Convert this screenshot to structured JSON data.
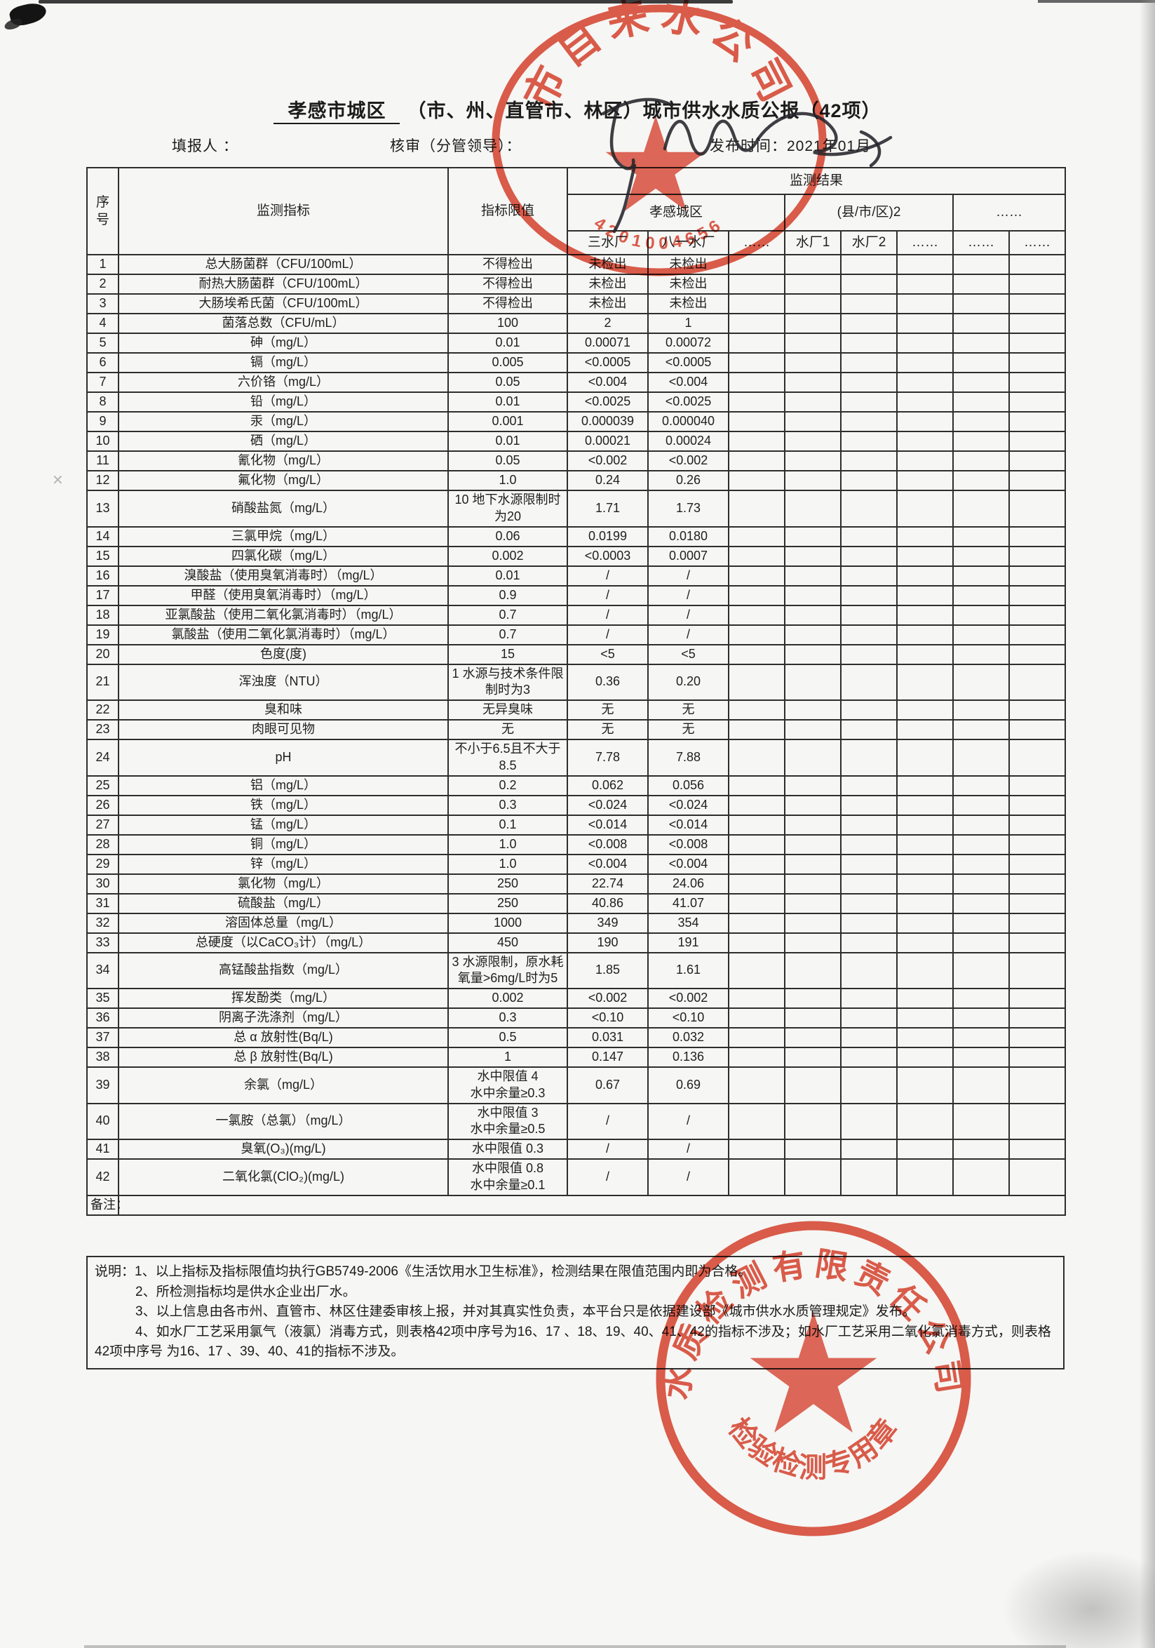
{
  "page": {
    "title_region": "孝感市城区",
    "title_rest": "（市、州、直管市、林区）城市供水水质公报（42项）",
    "filler_label": "填报人 ：",
    "reviewer_label": "核审（分管领导）：",
    "publish_label": "发布时间：2021年01月"
  },
  "colors": {
    "stamp_red": "#dd4733",
    "ink": "#1c1c1c",
    "paper": "#f6f6f4"
  },
  "table": {
    "headers": {
      "no": "序号",
      "indicator": "监测指标",
      "limit": "指标限值",
      "result": "监测结果",
      "group1": "孝感城区",
      "group2": "(县/市/区)2",
      "group3": "……",
      "plants": [
        "三水厂",
        "八一水厂",
        "……",
        "水厂1",
        "水厂2",
        "……",
        "……",
        "……"
      ]
    },
    "remark_label": "备注：",
    "rows": [
      {
        "no": "1",
        "label": "总大肠菌群（CFU/100mL）",
        "limit": "不得检出",
        "v1": "未检出",
        "v2": "未检出"
      },
      {
        "no": "2",
        "label": "耐热大肠菌群（CFU/100mL）",
        "limit": "不得检出",
        "v1": "未检出",
        "v2": "未检出"
      },
      {
        "no": "3",
        "label": "大肠埃希氏菌（CFU/100mL）",
        "limit": "不得检出",
        "v1": "未检出",
        "v2": "未检出"
      },
      {
        "no": "4",
        "label": "菌落总数（CFU/mL）",
        "limit": "100",
        "v1": "2",
        "v2": "1"
      },
      {
        "no": "5",
        "label": "砷（mg/L）",
        "limit": "0.01",
        "v1": "0.00071",
        "v2": "0.00072"
      },
      {
        "no": "6",
        "label": "镉（mg/L）",
        "limit": "0.005",
        "v1": "<0.0005",
        "v2": "<0.0005"
      },
      {
        "no": "7",
        "label": "六价铬（mg/L）",
        "limit": "0.05",
        "v1": "<0.004",
        "v2": "<0.004"
      },
      {
        "no": "8",
        "label": "铅（mg/L）",
        "limit": "0.01",
        "v1": "<0.0025",
        "v2": "<0.0025"
      },
      {
        "no": "9",
        "label": "汞（mg/L）",
        "limit": "0.001",
        "v1": "0.000039",
        "v2": "0.000040"
      },
      {
        "no": "10",
        "label": "硒（mg/L）",
        "limit": "0.01",
        "v1": "0.00021",
        "v2": "0.00024"
      },
      {
        "no": "11",
        "label": "氰化物（mg/L）",
        "limit": "0.05",
        "v1": "<0.002",
        "v2": "<0.002"
      },
      {
        "no": "12",
        "label": "氟化物（mg/L）",
        "limit": "1.0",
        "v1": "0.24",
        "v2": "0.26"
      },
      {
        "no": "13",
        "label": "硝酸盐氮（mg/L）",
        "limit": "10 地下水源限制时为20",
        "v1": "1.71",
        "v2": "1.73"
      },
      {
        "no": "14",
        "label": "三氯甲烷（mg/L）",
        "limit": "0.06",
        "v1": "0.0199",
        "v2": "0.0180"
      },
      {
        "no": "15",
        "label": "四氯化碳（mg/L）",
        "limit": "0.002",
        "v1": "<0.0003",
        "v2": "0.0007"
      },
      {
        "no": "16",
        "label": "溴酸盐（使用臭氧消毒时）（mg/L）",
        "limit": "0.01",
        "v1": "/",
        "v2": "/"
      },
      {
        "no": "17",
        "label": "甲醛（使用臭氧消毒时）（mg/L）",
        "limit": "0.9",
        "v1": "/",
        "v2": "/"
      },
      {
        "no": "18",
        "label": "亚氯酸盐（使用二氧化氯消毒时）（mg/L）",
        "limit": "0.7",
        "v1": "/",
        "v2": "/"
      },
      {
        "no": "19",
        "label": "氯酸盐（使用二氧化氯消毒时）（mg/L）",
        "limit": "0.7",
        "v1": "/",
        "v2": "/"
      },
      {
        "no": "20",
        "label": "色度(度)",
        "limit": "15",
        "v1": "<5",
        "v2": "<5"
      },
      {
        "no": "21",
        "label": "浑浊度（NTU）",
        "limit": "1  水源与技术条件限制时为3",
        "v1": "0.36",
        "v2": "0.20"
      },
      {
        "no": "22",
        "label": "臭和味",
        "limit": "无异臭味",
        "v1": "无",
        "v2": "无"
      },
      {
        "no": "23",
        "label": "肉眼可见物",
        "limit": "无",
        "v1": "无",
        "v2": "无"
      },
      {
        "no": "24",
        "label": "pH",
        "limit": "不小于6.5且不大于8.5",
        "v1": "7.78",
        "v2": "7.88"
      },
      {
        "no": "25",
        "label": "铝（mg/L）",
        "limit": "0.2",
        "v1": "0.062",
        "v2": "0.056"
      },
      {
        "no": "26",
        "label": "铁（mg/L）",
        "limit": "0.3",
        "v1": "<0.024",
        "v2": "<0.024"
      },
      {
        "no": "27",
        "label": "锰（mg/L）",
        "limit": "0.1",
        "v1": "<0.014",
        "v2": "<0.014"
      },
      {
        "no": "28",
        "label": "铜（mg/L）",
        "limit": "1.0",
        "v1": "<0.008",
        "v2": "<0.008"
      },
      {
        "no": "29",
        "label": "锌（mg/L）",
        "limit": "1.0",
        "v1": "<0.004",
        "v2": "<0.004"
      },
      {
        "no": "30",
        "label": "氯化物（mg/L）",
        "limit": "250",
        "v1": "22.74",
        "v2": "24.06"
      },
      {
        "no": "31",
        "label": "硫酸盐（mg/L）",
        "limit": "250",
        "v1": "40.86",
        "v2": "41.07"
      },
      {
        "no": "32",
        "label": "溶固体总量（mg/L）",
        "limit": "1000",
        "v1": "349",
        "v2": "354"
      },
      {
        "no": "33",
        "label": "总硬度（以CaCO₃计）（mg/L）",
        "limit": "450",
        "v1": "190",
        "v2": "191"
      },
      {
        "no": "34",
        "label": "高锰酸盐指数（mg/L）",
        "limit": "3 水源限制，原水耗氧量>6mg/L时为5",
        "v1": "1.85",
        "v2": "1.61"
      },
      {
        "no": "35",
        "label": "挥发酚类（mg/L）",
        "limit": "0.002",
        "v1": "<0.002",
        "v2": "<0.002"
      },
      {
        "no": "36",
        "label": "阴离子洗涤剂（mg/L）",
        "limit": "0.3",
        "v1": "<0.10",
        "v2": "<0.10"
      },
      {
        "no": "37",
        "label": "总 α 放射性(Bq/L)",
        "limit": "0.5",
        "v1": "0.031",
        "v2": "0.032"
      },
      {
        "no": "38",
        "label": "总 β 放射性(Bq/L)",
        "limit": "1",
        "v1": "0.147",
        "v2": "0.136"
      },
      {
        "no": "39",
        "label": "余氯（mg/L）",
        "limit": "水中限值 4\n水中余量≥0.3",
        "v1": "0.67",
        "v2": "0.69"
      },
      {
        "no": "40",
        "label": "一氯胺（总氯）（mg/L）",
        "limit": "水中限值 3\n水中余量≥0.5",
        "v1": "/",
        "v2": "/"
      },
      {
        "no": "41",
        "label": "臭氧(O₃)(mg/L)",
        "limit": "水中限值 0.3",
        "v1": "/",
        "v2": "/"
      },
      {
        "no": "42",
        "label": "二氧化氯(ClO₂)(mg/L)",
        "limit": "水中限值 0.8\n水中余量≥0.1",
        "v1": "/",
        "v2": "/"
      }
    ]
  },
  "notes": {
    "items": [
      "说明：1、以上指标及指标限值均执行GB5749-2006《生活饮用水卫生标准》，检测结果在限值范围内即为合格。",
      "2、所检测指标均是供水企业出厂水。",
      "3、以上信息由各市州、直管市、林区住建委审核上报，并对其真实性负责，本平台只是依据建设部《城市供水水质管理规定》发布。",
      "4、如水厂工艺采用氯气（液氯）消毒方式，则表格42项中序号为16、17 、18、19、40、41、42的指标不涉及；如水厂工艺采用二氧化氯消毒方式，则表格42项中序号 为16、17 、39、40、41的指标不涉及。"
    ]
  },
  "stamps": {
    "top_seal": {
      "arc_text": "市自来水公司",
      "serial": "4201004656"
    },
    "bottom_seal": {
      "arc_text": "水质检测有限责任公司",
      "bottom_text": "检验检测专用章"
    }
  }
}
